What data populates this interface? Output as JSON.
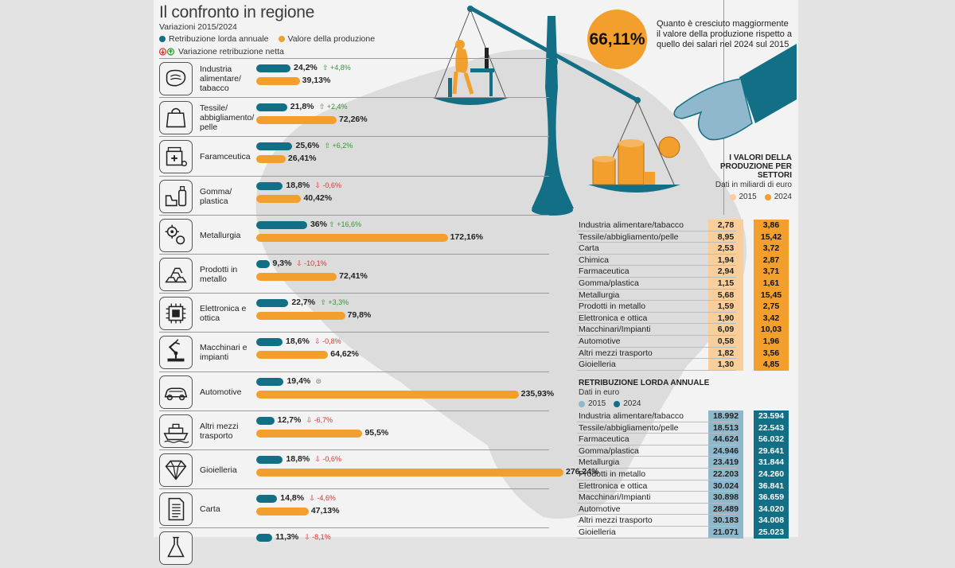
{
  "header": {
    "title": "Il confronto in regione",
    "subtitle": "Variazioni 2015/2024",
    "legend_salary": "Retribuzione lorda annuale",
    "legend_production": "Valore della produzione",
    "legend_net": "Variazione retribuzione netta"
  },
  "colors": {
    "teal": "#136f85",
    "orange": "#f29f2d",
    "light_orange": "#f8cf9a",
    "light_teal": "#8fb8cc",
    "up": "#2e9a2e",
    "down": "#d33"
  },
  "highlight": {
    "badge": "66,11%",
    "note": "Quanto è cresciuto maggiormente il valore della produzione rispetto a quello dei salari nel 2024 sul 2015"
  },
  "chart_data": [
    {
      "type": "bar",
      "title": "Il confronto in regione",
      "subtitle": "Variazioni 2015/2024",
      "categories": [
        "Industria alimentare/ tabacco",
        "Tessile/ abbigliamento/ pelle",
        "Faramceutica",
        "Gomma/ plastica",
        "Metallurgia",
        "Prodotti in metallo",
        "Elettronica e ottica",
        "Macchinari e impianti",
        "Automotive",
        "Altri mezzi trasporto",
        "Gioielleria",
        "Carta",
        ""
      ],
      "series": [
        {
          "name": "Retribuzione lorda annuale",
          "values": [
            24.2,
            21.8,
            25.6,
            18.8,
            36,
            9.3,
            22.7,
            18.6,
            19.4,
            12.7,
            18.8,
            14.8,
            11.3
          ],
          "labels": [
            "24,2%",
            "21,8%",
            "25,6%",
            "18,8%",
            "36%",
            "9,3%",
            "22,7%",
            "18,6%",
            "19,4%",
            "12,7%",
            "18,8%",
            "14,8%",
            "11,3%"
          ]
        },
        {
          "name": "Valore della produzione",
          "values": [
            39.13,
            72.26,
            26.41,
            40.42,
            172.16,
            72.41,
            79.8,
            64.62,
            235.93,
            95.5,
            276.24,
            47.13,
            null
          ],
          "labels": [
            "39,13%",
            "72,26%",
            "26,41%",
            "40,42%",
            "172,16%",
            "72,41%",
            "79,8%",
            "64,62%",
            "235,93%",
            "95,5%",
            "276,24%",
            "47,13%",
            ""
          ]
        },
        {
          "name": "Variazione retribuzione netta",
          "labels": [
            "+4,8%",
            "+2,4%",
            "+6,2%",
            "-0,6%",
            "+16,6%",
            "-10,1%",
            "+3,3%",
            "-0,8%",
            "",
            "-6,7%",
            "-0,6%",
            "-4,6%",
            "-8,1%"
          ],
          "direction": [
            "up",
            "up",
            "up",
            "down",
            "up",
            "down",
            "up",
            "down",
            "eq",
            "down",
            "down",
            "down",
            "down"
          ]
        }
      ],
      "icons": [
        "steak-icon",
        "shopping-bag-icon",
        "pharmacy-icon",
        "bottles-icon",
        "gears-icon",
        "ingots-icon",
        "chip-icon",
        "robot-arm-icon",
        "car-icon",
        "ship-icon",
        "diamond-icon",
        "paper-icon",
        "flask-icon"
      ]
    },
    {
      "type": "table",
      "title": "I VALORI DELLA PRODUZIONE PER SETTORI",
      "subtitle": "Dati in miliardi di euro",
      "columns": [
        "2015",
        "2024"
      ],
      "rows": [
        {
          "name": "Industria alimentare/tabacco",
          "v2015": "2,78",
          "v2024": "3,86"
        },
        {
          "name": "Tessile/abbigliamento/pelle",
          "v2015": "8,95",
          "v2024": "15,42"
        },
        {
          "name": "Carta",
          "v2015": "2,53",
          "v2024": "3,72"
        },
        {
          "name": "Chimica",
          "v2015": "1,94",
          "v2024": "2,87"
        },
        {
          "name": "Farmaceutica",
          "v2015": "2,94",
          "v2024": "3,71"
        },
        {
          "name": "Gomma/plastica",
          "v2015": "1,15",
          "v2024": "1,61"
        },
        {
          "name": "Metallurgia",
          "v2015": "5,68",
          "v2024": "15,45"
        },
        {
          "name": "Prodotti in metallo",
          "v2015": "1,59",
          "v2024": "2,75"
        },
        {
          "name": "Elettronica e ottica",
          "v2015": "1,90",
          "v2024": "3,42"
        },
        {
          "name": "Macchinari/Impianti",
          "v2015": "6,09",
          "v2024": "10,03"
        },
        {
          "name": "Automotive",
          "v2015": "0,58",
          "v2024": "1,96"
        },
        {
          "name": "Altri mezzi trasporto",
          "v2015": "1,82",
          "v2024": "3,56"
        },
        {
          "name": "Gioielleria",
          "v2015": "1,30",
          "v2024": "4,85"
        }
      ]
    },
    {
      "type": "table",
      "title": "RETRIBUZIONE LORDA ANNUALE",
      "subtitle": "Dati in euro",
      "columns": [
        "2015",
        "2024"
      ],
      "rows": [
        {
          "name": "Industria alimentare/tabacco",
          "v2015": "18.992",
          "v2024": "23.594"
        },
        {
          "name": "Tessile/abbigliamento/pelle",
          "v2015": "18.513",
          "v2024": "22.543"
        },
        {
          "name": "Farmaceutica",
          "v2015": "44.624",
          "v2024": "56.032"
        },
        {
          "name": "Gomma/plastica",
          "v2015": "24.946",
          "v2024": "29.641"
        },
        {
          "name": "Metallurgia",
          "v2015": "23.419",
          "v2024": "31.844"
        },
        {
          "name": "Prodotti in metallo",
          "v2015": "22.203",
          "v2024": "24.260"
        },
        {
          "name": "Elettronica e ottica",
          "v2015": "30.024",
          "v2024": "36.841"
        },
        {
          "name": "Macchinari/Impianti",
          "v2015": "30.898",
          "v2024": "36.659"
        },
        {
          "name": "Automotive",
          "v2015": "28.489",
          "v2024": "34.020"
        },
        {
          "name": "Altri mezzi trasporto",
          "v2015": "30.183",
          "v2024": "34.008"
        },
        {
          "name": "Gioielleria",
          "v2015": "21.071",
          "v2024": "25.023"
        }
      ]
    }
  ]
}
